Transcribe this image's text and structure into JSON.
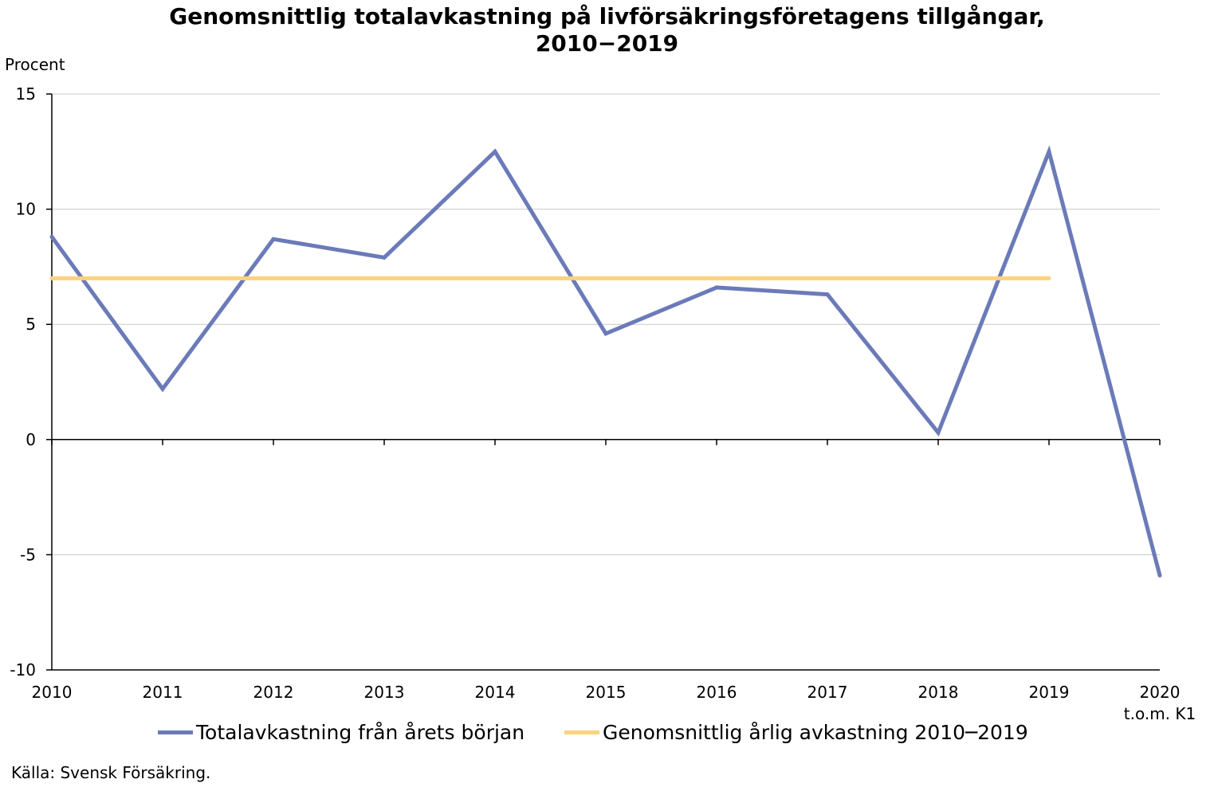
{
  "title_line1": "Genomsnittlig totalavkastning på livförsäkringsföretagens tillgångar,",
  "title_line2": "2010−2019",
  "source": "Källa: Svensk Försäkring.",
  "colors": {
    "series1": "#6b7ab8",
    "series2": "#fcd27f",
    "grid": "#c8c8c8",
    "axis": "#000000"
  },
  "chart_data": {
    "type": "line",
    "ylabel": "Procent",
    "ylim": [
      -10,
      15
    ],
    "yticks": [
      -10,
      -5,
      0,
      5,
      10,
      15
    ],
    "x": [
      "2010",
      "2011",
      "2012",
      "2013",
      "2014",
      "2015",
      "2016",
      "2017",
      "2018",
      "2019",
      "2020"
    ],
    "x_sublabels": [
      "",
      "",
      "",
      "",
      "",
      "",
      "",
      "",
      "",
      "",
      "t.o.m. K1"
    ],
    "grid": true,
    "legend_position": "bottom",
    "series": [
      {
        "name": "Totalavkastning från årets början",
        "values": [
          8.8,
          2.2,
          8.7,
          7.9,
          12.5,
          4.6,
          6.6,
          6.3,
          0.3,
          12.5,
          -5.9
        ]
      },
      {
        "name": "Genomsnittlig årlig avkastning 2010─2019",
        "values": [
          7.0,
          7.0,
          7.0,
          7.0,
          7.0,
          7.0,
          7.0,
          7.0,
          7.0,
          7.0,
          null
        ]
      }
    ]
  }
}
